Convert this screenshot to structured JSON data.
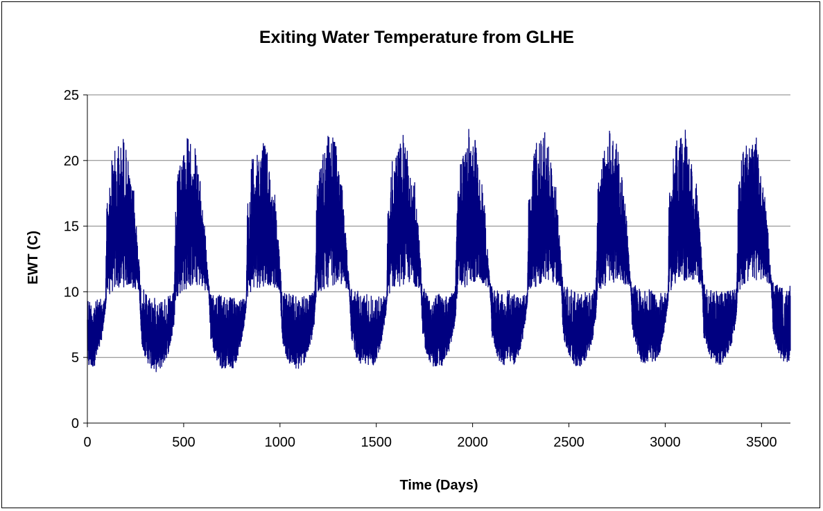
{
  "chart_data": {
    "type": "line",
    "title": "Exiting Water Temperature from GLHE",
    "xlabel": "Time (Days)",
    "ylabel": "EWT (C)",
    "xlim": [
      0,
      3650
    ],
    "ylim": [
      0,
      25
    ],
    "xticks": [
      0,
      500,
      1000,
      1500,
      2000,
      2500,
      3000,
      3500
    ],
    "yticks": [
      0,
      5,
      10,
      15,
      20,
      25
    ],
    "grid": {
      "y": true,
      "x": false
    },
    "legend": "none",
    "series": [
      {
        "color": "#000080",
        "sampling": "envelope of densely oscillating hourly values, one min/max band per ~5-day step",
        "x_days": [
          0,
          5,
          10,
          15,
          20,
          25,
          30,
          35,
          40,
          45,
          50,
          55,
          60,
          65,
          70,
          75,
          80,
          85,
          90,
          95,
          100,
          110,
          120,
          130,
          140,
          150,
          160,
          170,
          180,
          190,
          200,
          210,
          220,
          230,
          240,
          250,
          260,
          270,
          280,
          290,
          300,
          310,
          320,
          330,
          340,
          350,
          360,
          370,
          380,
          390,
          400,
          410,
          420,
          430,
          440,
          450,
          460,
          470,
          480,
          490,
          500,
          510,
          520,
          530,
          540,
          550,
          560,
          570,
          580,
          590,
          600,
          610,
          620,
          630,
          640,
          650,
          660,
          670,
          680,
          690,
          700,
          710,
          720,
          730
        ],
        "min_year1": [
          4.3,
          4.1,
          4.0,
          4.2,
          4.1,
          3.9,
          4.2,
          4.3,
          4.4,
          4.6,
          4.8,
          5.0,
          5.3,
          5.6,
          6.0,
          6.4,
          6.9,
          7.4,
          8.0,
          8.8,
          9.4,
          9.6,
          9.8,
          9.9,
          10.0,
          10.1,
          10.1,
          10.2,
          10.2,
          10.3,
          10.3,
          10.3,
          10.3,
          10.2,
          10.1,
          10.1,
          10.0,
          10.0,
          6.0,
          5.5,
          5.0,
          4.6,
          4.3,
          4.1,
          3.9,
          3.8,
          3.8,
          3.9,
          4.0,
          4.2,
          4.5,
          4.8,
          5.2,
          5.7,
          6.4,
          7.4,
          9.4,
          9.6,
          9.7,
          9.8,
          9.9,
          10.0,
          10.1,
          10.2,
          10.2,
          10.3,
          10.3,
          10.3,
          10.3,
          10.2,
          10.1,
          10.0,
          10.0,
          9.9,
          6.2,
          5.6,
          5.1,
          4.6,
          4.3,
          4.1,
          4.0,
          4.0,
          4.1,
          4.2
        ],
        "max_year1": [
          9.9,
          9.8,
          9.6,
          9.5,
          9.4,
          9.5,
          9.4,
          9.5,
          9.4,
          9.3,
          9.4,
          9.5,
          9.4,
          9.4,
          9.5,
          9.4,
          9.5,
          9.4,
          9.5,
          9.6,
          17.3,
          16.8,
          19.5,
          20.5,
          21.2,
          20.0,
          21.5,
          20.8,
          21.8,
          22.0,
          21.0,
          20.2,
          19.0,
          17.6,
          18.2,
          16.0,
          14.5,
          12.0,
          10.1,
          10.2,
          10.0,
          9.9,
          9.8,
          9.7,
          9.6,
          9.5,
          9.6,
          9.5,
          9.4,
          9.5,
          9.6,
          9.5,
          9.6,
          9.7,
          9.8,
          9.9,
          17.4,
          18.9,
          19.9,
          20.3,
          21.6,
          20.6,
          22.1,
          20.8,
          21.7,
          22.2,
          21.0,
          20.0,
          18.6,
          18.2,
          16.5,
          15.0,
          12.5,
          10.4,
          10.2,
          10.1,
          10.0,
          9.9,
          9.8,
          9.7,
          9.6,
          9.7,
          9.8,
          9.9
        ],
        "period_days": 365,
        "years": 10,
        "yearly_trend_c": 0.06
      }
    ]
  }
}
